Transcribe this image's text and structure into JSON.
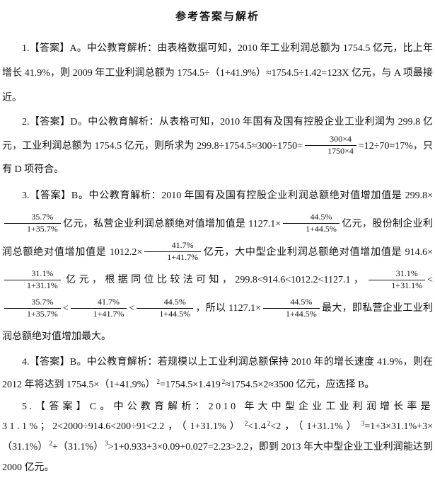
{
  "page": {
    "title": "参考答案与解析",
    "background_color": "#ffffff",
    "text_color": "#111111"
  },
  "paragraphs": [
    {
      "id": "answer-1",
      "segments": [
        {
          "t": "text",
          "v": "1.【答案】A。中公教育解析：由表格数据可知，2010 年工业利润总额为 1754.5 亿元，比上年增长 41.9%，则 2009 年工业利润总额为 1754.5÷（1+41.9%）≈1754.5÷1.42=123X 亿元，与 A 项最接近。"
        }
      ]
    },
    {
      "id": "answer-2",
      "segments": [
        {
          "t": "text",
          "v": "2.【答案】D。中公教育解析：从表格可知，2010 年国有及国有控股企业工业利润为 299.8 亿元，工业利润总额为 1754.5 亿元，则所求为 299.8÷1754.5≈300÷1750="
        },
        {
          "t": "frac",
          "num": "300×4",
          "den": "1750×4"
        },
        {
          "t": "text",
          "v": "=12÷70≈17%，只有 D 项符合。"
        }
      ]
    },
    {
      "id": "answer-3",
      "segments": [
        {
          "t": "text",
          "v": "3.【答案】B。中公教育解析：2010 年国有及国有控股企业利润总额绝对值增加值是 299.8×"
        },
        {
          "t": "frac",
          "num": "35.7%",
          "den": "1+35.7%"
        },
        {
          "t": "text",
          "v": "亿元，私营企业利润总额绝对值增加值是 1127.1×"
        },
        {
          "t": "frac",
          "num": "44.5%",
          "den": "1+44.5%"
        },
        {
          "t": "text",
          "v": "亿元，股份制企业利润总额绝对值增加值是 1012.2×"
        },
        {
          "t": "frac",
          "num": "41.7%",
          "den": "1+41.7%"
        },
        {
          "t": "text",
          "v": "亿元，大中型企业利润总额绝对值增加值是 914.6×"
        },
        {
          "t": "frac",
          "num": "31.1%",
          "den": "1+31.1%"
        },
        {
          "t": "text",
          "v": "亿元，根据同位比较法可知，299.8<914.6<1012.2<1127.1，"
        },
        {
          "t": "frac",
          "num": "31.1%",
          "den": "1+31.1%"
        },
        {
          "t": "text",
          "v": "<"
        },
        {
          "t": "frac",
          "num": "35.7%",
          "den": "1+35.7%"
        },
        {
          "t": "text",
          "v": "<"
        },
        {
          "t": "frac",
          "num": "41.7%",
          "den": "1+41.7%"
        },
        {
          "t": "text",
          "v": "<"
        },
        {
          "t": "frac",
          "num": "44.5%",
          "den": "1+44.5%"
        },
        {
          "t": "text",
          "v": "，所以 1127.1×"
        },
        {
          "t": "frac",
          "num": "44.5%",
          "den": "1+44.5%"
        },
        {
          "t": "text",
          "v": "最大，即私营企业工业利润总额绝对值增加最大。"
        }
      ]
    },
    {
      "id": "answer-4",
      "segments": [
        {
          "t": "text",
          "v": "4.【答案】B。中公教育解析：若规模以上工业利润总额保持 2010 年的增长速度 41.9%，则在 2012 年将达到 1754.5×（1+41.9%）"
        },
        {
          "t": "sup",
          "v": "2"
        },
        {
          "t": "text",
          "v": "=1754.5×1.419"
        },
        {
          "t": "sup",
          "v": "2"
        },
        {
          "t": "text",
          "v": "≈1754.5×2≈3500 亿元，应选择 B。"
        }
      ]
    },
    {
      "id": "answer-5",
      "segments": [
        {
          "t": "text",
          "cls": "spread",
          "v": "5.【答案】C。中公教育解析：2010 年大中型企业工业利润增长率是 31.1%；"
        },
        {
          "t": "text",
          "v": "2<2000÷914.6<200÷91<2.2，（1+31.1%）"
        },
        {
          "t": "sup",
          "v": "2"
        },
        {
          "t": "text",
          "v": "<1.4"
        },
        {
          "t": "sup",
          "v": "2"
        },
        {
          "t": "text",
          "v": "<2，（1+31.1%）"
        },
        {
          "t": "sup",
          "v": "3"
        },
        {
          "t": "text",
          "v": "=1+3×31.1%+3×（31.1%）"
        },
        {
          "t": "sup",
          "v": "2"
        },
        {
          "t": "text",
          "v": "+（31.1%）"
        },
        {
          "t": "sup",
          "v": "3"
        },
        {
          "t": "text",
          "v": ">1+0.933+3×0.09+0.027=2.23>2.2，即到 2013 年大中型企业工业利润能达到 2000 亿元。"
        }
      ]
    }
  ]
}
